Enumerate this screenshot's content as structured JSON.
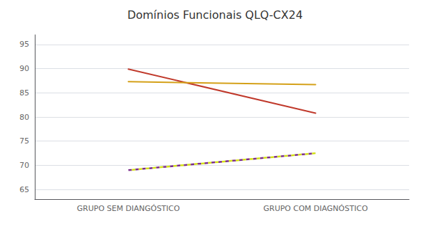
{
  "chart_data": {
    "type": "line",
    "title": "Domínios Funcionais QLQ-CX24",
    "categories": [
      "GRUPO SEM DIANGÓSTICO",
      "GRUPO COM DIAGNÓSTICO"
    ],
    "series": [
      {
        "values": [
          89.9,
          80.8
        ],
        "color": "#C0392B",
        "line_style": "solid"
      },
      {
        "values": [
          87.3,
          86.7
        ],
        "color": "#D4A017",
        "line_style": "solid"
      },
      {
        "values": [
          69.0,
          72.5
        ],
        "colors": [
          "#7B2D8B",
          "#D4E017"
        ],
        "line_style": "dashed"
      }
    ],
    "ylim": [
      63,
      97
    ],
    "yticks": [
      65,
      70,
      75,
      80,
      85,
      90,
      95
    ],
    "grid": true
  }
}
